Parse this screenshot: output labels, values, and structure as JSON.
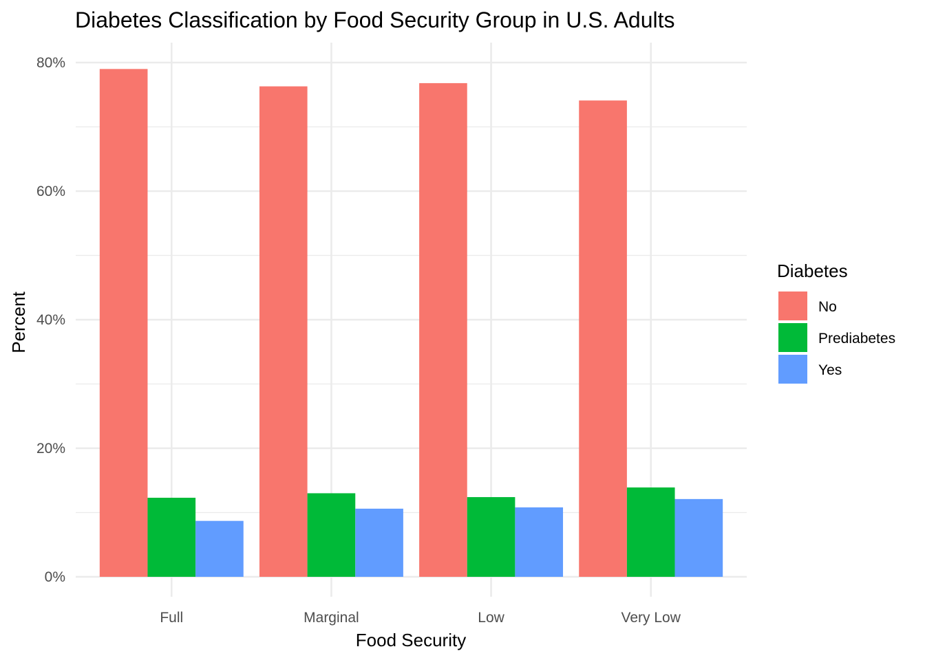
{
  "chart_data": {
    "type": "bar",
    "title": "Diabetes Classification by Food Security Group in U.S. Adults",
    "xlabel": "Food Security",
    "ylabel": "Percent",
    "categories": [
      "Full",
      "Marginal",
      "Low",
      "Very Low"
    ],
    "series": [
      {
        "name": "No",
        "color": "#F8766D",
        "values": [
          79.0,
          76.3,
          76.8,
          74.1
        ]
      },
      {
        "name": "Prediabetes",
        "color": "#00BA38",
        "values": [
          12.3,
          13.0,
          12.4,
          13.9
        ]
      },
      {
        "name": "Yes",
        "color": "#619CFF",
        "values": [
          8.7,
          10.6,
          10.8,
          12.1
        ]
      }
    ],
    "ylim": [
      0,
      80
    ],
    "y_ticks": [
      0,
      20,
      40,
      60,
      80
    ],
    "y_tick_labels": [
      "0%",
      "20%",
      "40%",
      "60%",
      "80%"
    ],
    "grid": true,
    "legend": {
      "title": "Diabetes",
      "position": "right"
    }
  }
}
